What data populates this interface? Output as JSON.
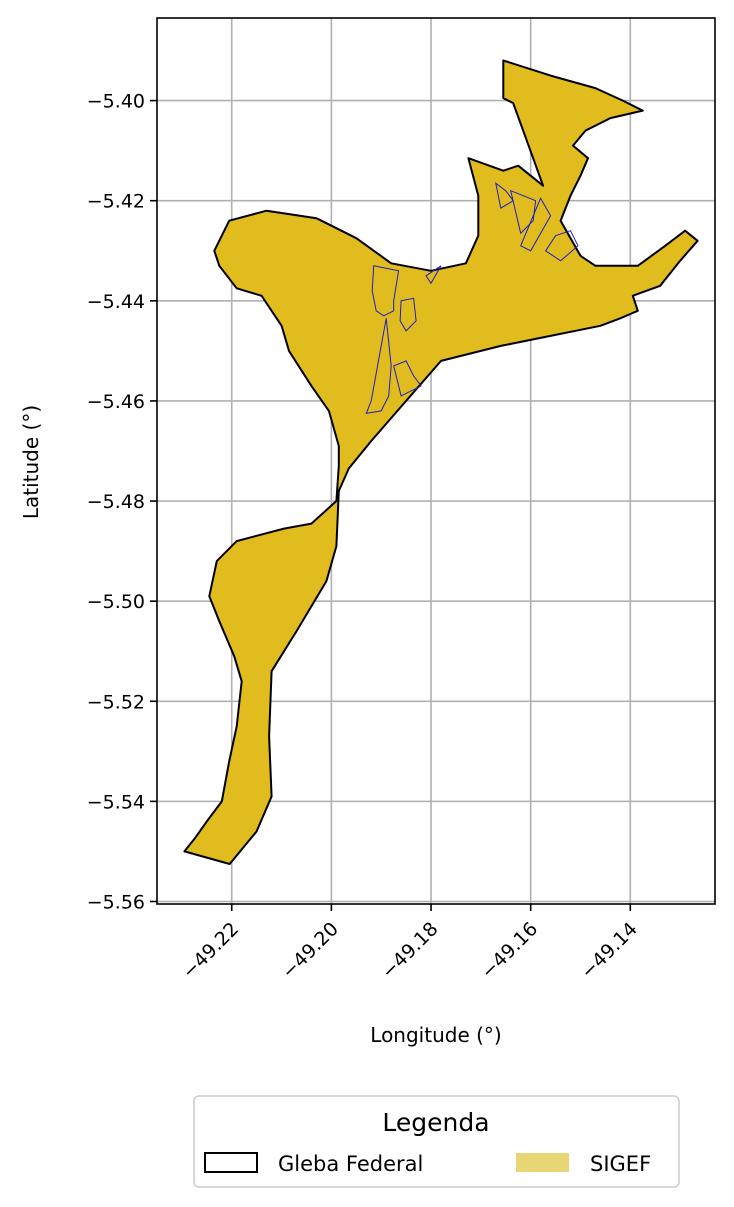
{
  "chart_data": {
    "type": "map",
    "xlabel": "Longitude (°)",
    "ylabel": "Latitude (°)",
    "xlim": [
      -49.235,
      -49.123
    ],
    "ylim": [
      -5.5605,
      -5.3835
    ],
    "xticks": [
      -49.22,
      -49.2,
      -49.18,
      -49.16,
      -49.14
    ],
    "xtick_labels": [
      "−49.22",
      "−49.20",
      "−49.18",
      "−49.16",
      "−49.14"
    ],
    "yticks": [
      -5.4,
      -5.42,
      -5.44,
      -5.46,
      -5.48,
      -5.5,
      -5.52,
      -5.54,
      -5.56
    ],
    "ytick_labels": [
      "−5.40",
      "−5.42",
      "−5.44",
      "−5.46",
      "−5.48",
      "−5.50",
      "−5.52",
      "−5.54",
      "−5.56"
    ],
    "grid": true,
    "legend": {
      "title": "Legenda",
      "placement": "bottom-center",
      "entries": [
        {
          "label": "Gleba Federal",
          "style": "outline",
          "color": "#000000"
        },
        {
          "label": "SIGEF",
          "style": "fill",
          "color": "#e8d576"
        }
      ]
    },
    "layers": {
      "gleba_federal": {
        "fill": "#e0bc1f",
        "stroke": "#000000",
        "outline": [
          [
            -49.2204,
            -5.5525
          ],
          [
            -49.2295,
            -5.55
          ],
          [
            -49.2275,
            -5.5475
          ],
          [
            -49.225,
            -5.544
          ],
          [
            -49.222,
            -5.54
          ],
          [
            -49.2205,
            -5.532
          ],
          [
            -49.219,
            -5.525
          ],
          [
            -49.218,
            -5.516
          ],
          [
            -49.2195,
            -5.511
          ],
          [
            -49.2225,
            -5.504
          ],
          [
            -49.2245,
            -5.499
          ],
          [
            -49.223,
            -5.492
          ],
          [
            -49.219,
            -5.488
          ],
          [
            -49.2095,
            -5.4855
          ],
          [
            -49.204,
            -5.4845
          ],
          [
            -49.199,
            -5.48
          ],
          [
            -49.1985,
            -5.473
          ],
          [
            -49.1985,
            -5.469
          ],
          [
            -49.2005,
            -5.462
          ],
          [
            -49.204,
            -5.457
          ],
          [
            -49.2085,
            -5.45
          ],
          [
            -49.21,
            -5.445
          ],
          [
            -49.214,
            -5.439
          ],
          [
            -49.219,
            -5.4375
          ],
          [
            -49.2225,
            -5.433
          ],
          [
            -49.2235,
            -5.43
          ],
          [
            -49.2205,
            -5.424
          ],
          [
            -49.213,
            -5.422
          ],
          [
            -49.203,
            -5.4235
          ],
          [
            -49.195,
            -5.4275
          ],
          [
            -49.188,
            -5.4325
          ],
          [
            -49.18,
            -5.434
          ],
          [
            -49.173,
            -5.4325
          ],
          [
            -49.1705,
            -5.427
          ],
          [
            -49.1705,
            -5.419
          ],
          [
            -49.1725,
            -5.4115
          ],
          [
            -49.1655,
            -5.414
          ],
          [
            -49.1625,
            -5.413
          ],
          [
            -49.1575,
            -5.417
          ],
          [
            -49.1635,
            -5.4005
          ],
          [
            -49.1655,
            -5.3995
          ],
          [
            -49.1655,
            -5.392
          ],
          [
            -49.156,
            -5.395
          ],
          [
            -49.147,
            -5.3975
          ],
          [
            -49.1415,
            -5.4
          ],
          [
            -49.1375,
            -5.402
          ],
          [
            -49.144,
            -5.4035
          ],
          [
            -49.149,
            -5.406
          ],
          [
            -49.1515,
            -5.409
          ],
          [
            -49.1485,
            -5.4115
          ],
          [
            -49.15,
            -5.415
          ],
          [
            -49.152,
            -5.419
          ],
          [
            -49.154,
            -5.424
          ],
          [
            -49.15,
            -5.431
          ],
          [
            -49.147,
            -5.433
          ],
          [
            -49.1385,
            -5.433
          ],
          [
            -49.133,
            -5.429
          ],
          [
            -49.129,
            -5.426
          ],
          [
            -49.1265,
            -5.428
          ],
          [
            -49.13,
            -5.432
          ],
          [
            -49.134,
            -5.437
          ],
          [
            -49.1395,
            -5.439
          ],
          [
            -49.1385,
            -5.442
          ],
          [
            -49.142,
            -5.4435
          ],
          [
            -49.146,
            -5.445
          ],
          [
            -49.166,
            -5.449
          ],
          [
            -49.178,
            -5.452
          ],
          [
            -49.185,
            -5.46
          ],
          [
            -49.192,
            -5.468
          ],
          [
            -49.1965,
            -5.4735
          ],
          [
            -49.1985,
            -5.478
          ],
          [
            -49.199,
            -5.489
          ],
          [
            -49.201,
            -5.496
          ],
          [
            -49.207,
            -5.506
          ],
          [
            -49.212,
            -5.514
          ],
          [
            -49.2125,
            -5.527
          ],
          [
            -49.212,
            -5.539
          ],
          [
            -49.215,
            -5.546
          ]
        ]
      },
      "sigef": {
        "stroke": "#1f1fbf",
        "parcels": [
          [
            [
              -49.1915,
              -5.433
            ],
            [
              -49.1865,
              -5.434
            ],
            [
              -49.1875,
              -5.44
            ],
            [
              -49.1875,
              -5.442
            ],
            [
              -49.1895,
              -5.443
            ],
            [
              -49.191,
              -5.442
            ],
            [
              -49.1918,
              -5.438
            ]
          ],
          [
            [
              -49.186,
              -5.44
            ],
            [
              -49.1835,
              -5.4395
            ],
            [
              -49.183,
              -5.444
            ],
            [
              -49.185,
              -5.446
            ],
            [
              -49.1862,
              -5.444
            ]
          ],
          [
            [
              -49.181,
              -5.435
            ],
            [
              -49.178,
              -5.433
            ],
            [
              -49.18,
              -5.4365
            ]
          ],
          [
            [
              -49.189,
              -5.4435
            ],
            [
              -49.188,
              -5.453
            ],
            [
              -49.1885,
              -5.459
            ],
            [
              -49.19,
              -5.462
            ],
            [
              -49.193,
              -5.4625
            ],
            [
              -49.192,
              -5.46
            ]
          ],
          [
            [
              -49.1875,
              -5.453
            ],
            [
              -49.185,
              -5.452
            ],
            [
              -49.1835,
              -5.455
            ],
            [
              -49.182,
              -5.457
            ],
            [
              -49.186,
              -5.459
            ]
          ],
          [
            [
              -49.167,
              -5.4165
            ],
            [
              -49.165,
              -5.418
            ],
            [
              -49.1635,
              -5.42
            ],
            [
              -49.166,
              -5.4215
            ]
          ],
          [
            [
              -49.164,
              -5.418
            ],
            [
              -49.159,
              -5.42
            ],
            [
              -49.1595,
              -5.424
            ],
            [
              -49.162,
              -5.4265
            ]
          ],
          [
            [
              -49.158,
              -5.4195
            ],
            [
              -49.156,
              -5.423
            ],
            [
              -49.16,
              -5.43
            ],
            [
              -49.162,
              -5.429
            ]
          ],
          [
            [
              -49.155,
              -5.427
            ],
            [
              -49.152,
              -5.426
            ],
            [
              -49.1505,
              -5.429
            ],
            [
              -49.154,
              -5.432
            ],
            [
              -49.157,
              -5.43
            ]
          ]
        ]
      }
    }
  }
}
